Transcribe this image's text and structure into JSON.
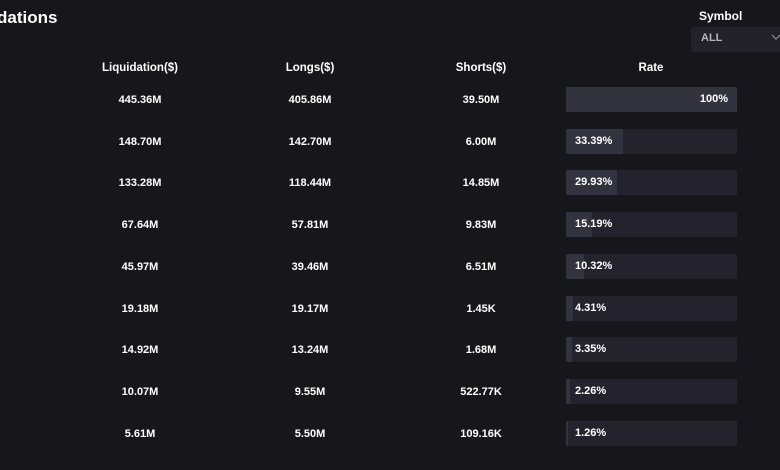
{
  "title": "dations",
  "symbol": {
    "label": "Symbol",
    "value": "ALL",
    "chevron_icon": "chevron-down-icon"
  },
  "columns": {
    "liquidation": "Liquidation($)",
    "longs": "Longs($)",
    "shorts": "Shorts($)",
    "rate": "Rate"
  },
  "colors": {
    "background": "#17161b",
    "bar_track": "#24232d",
    "bar_fill": "#33333f",
    "select_bg": "#23222a"
  },
  "rows": [
    {
      "liquidation": "445.36M",
      "longs": "405.86M",
      "shorts": "39.50M",
      "rate": "100%",
      "rate_value": 1.0
    },
    {
      "liquidation": "148.70M",
      "longs": "142.70M",
      "shorts": "6.00M",
      "rate": "33.39%",
      "rate_value": 0.3339
    },
    {
      "liquidation": "133.28M",
      "longs": "118.44M",
      "shorts": "14.85M",
      "rate": "29.93%",
      "rate_value": 0.2993
    },
    {
      "liquidation": "67.64M",
      "longs": "57.81M",
      "shorts": "9.83M",
      "rate": "15.19%",
      "rate_value": 0.1519
    },
    {
      "liquidation": "45.97M",
      "longs": "39.46M",
      "shorts": "6.51M",
      "rate": "10.32%",
      "rate_value": 0.1032
    },
    {
      "liquidation": "19.18M",
      "longs": "19.17M",
      "shorts": "1.45K",
      "rate": "4.31%",
      "rate_value": 0.0431
    },
    {
      "liquidation": "14.92M",
      "longs": "13.24M",
      "shorts": "1.68M",
      "rate": "3.35%",
      "rate_value": 0.0335
    },
    {
      "liquidation": "10.07M",
      "longs": "9.55M",
      "shorts": "522.77K",
      "rate": "2.26%",
      "rate_value": 0.0226
    },
    {
      "liquidation": "5.61M",
      "longs": "5.50M",
      "shorts": "109.16K",
      "rate": "1.26%",
      "rate_value": 0.0126
    }
  ]
}
